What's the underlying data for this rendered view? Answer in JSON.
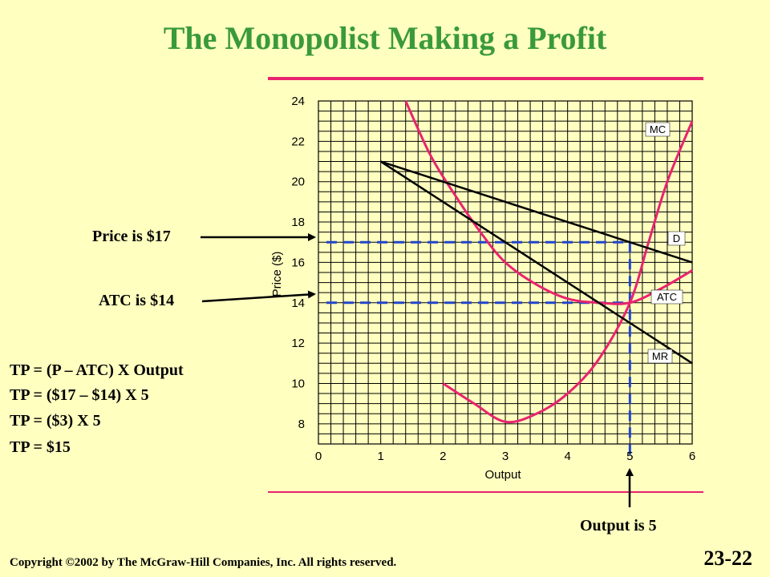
{
  "title": "The Monopolist Making a Profit",
  "callouts": {
    "price": "Price is $17",
    "atc": "ATC is $14",
    "output": "Output is 5"
  },
  "formulas": [
    "TP = (P – ATC) X Output",
    "TP = ($17 – $14) X  5",
    "TP = ($3) X  5",
    "TP = $15"
  ],
  "footer": {
    "copyright": "Copyright ©2002 by The McGraw-Hill Companies, Inc.  All rights reserved.",
    "slide_number": "23-22"
  },
  "colors": {
    "background": "#FFFFC0",
    "title": "#3A9A3A",
    "curve": "#E8246E",
    "guide": "#2244CC",
    "line": "#000000"
  },
  "chart_data": {
    "type": "line",
    "xlabel": "Output",
    "ylabel": "Price ($)",
    "xlim": [
      0,
      6
    ],
    "ylim": [
      7,
      24
    ],
    "x_ticks": [
      0,
      1,
      2,
      3,
      4,
      5,
      6
    ],
    "y_ticks": [
      8,
      10,
      12,
      14,
      16,
      18,
      20,
      22,
      24
    ],
    "grid": true,
    "series": [
      {
        "name": "MC",
        "color": "#E8246E",
        "x": [
          2,
          2.5,
          3,
          3.5,
          4,
          4.5,
          5,
          5.3,
          5.6,
          6
        ],
        "y": [
          10,
          9,
          8.1,
          8.5,
          9.5,
          11.2,
          14,
          17,
          20,
          23
        ]
      },
      {
        "name": "ATC",
        "color": "#E8246E",
        "x": [
          1.4,
          1.8,
          2.2,
          2.6,
          3,
          3.5,
          4,
          4.5,
          5,
          5.5,
          6
        ],
        "y": [
          24,
          21.3,
          19.3,
          17.5,
          16,
          14.9,
          14.2,
          14,
          14,
          14.7,
          15.6
        ]
      },
      {
        "name": "D",
        "color": "#000000",
        "x": [
          1,
          6
        ],
        "y": [
          21,
          16
        ]
      },
      {
        "name": "MR",
        "color": "#000000",
        "x": [
          1,
          6
        ],
        "y": [
          21,
          11
        ]
      }
    ],
    "guides": {
      "price": 17,
      "atc": 14,
      "output": 5
    }
  }
}
